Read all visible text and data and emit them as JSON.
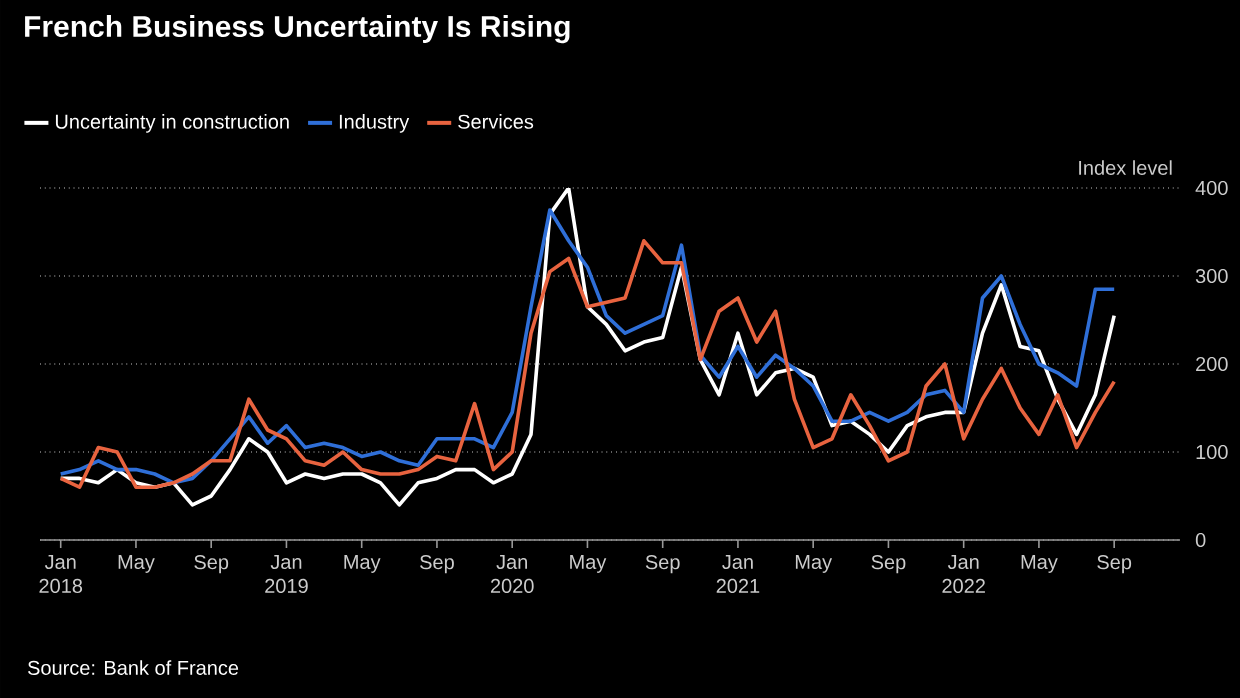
{
  "chart_data": {
    "type": "line",
    "title": "French Business Uncertainty Is Rising",
    "ylabel": "Index level",
    "categories": [
      "Jan 2018",
      null,
      null,
      null,
      "May",
      null,
      null,
      null,
      "Sep",
      null,
      null,
      null,
      "Jan 2019",
      null,
      null,
      null,
      "May",
      null,
      null,
      null,
      "Sep",
      null,
      null,
      null,
      "Jan 2020",
      null,
      null,
      null,
      "May",
      null,
      null,
      null,
      "Sep",
      null,
      null,
      null,
      "Jan 2021",
      null,
      null,
      null,
      "May",
      null,
      null,
      null,
      "Sep",
      null,
      null,
      null,
      "Jan 2022",
      null,
      null,
      null,
      "May",
      null,
      null,
      null,
      "Sep"
    ],
    "series": [
      {
        "name": "Uncertainty in construction",
        "color": "#ffffff",
        "values": [
          70,
          70,
          65,
          80,
          65,
          60,
          65,
          40,
          50,
          80,
          115,
          100,
          65,
          75,
          70,
          75,
          75,
          65,
          40,
          65,
          70,
          80,
          80,
          65,
          75,
          120,
          370,
          400,
          265,
          245,
          215,
          225,
          230,
          310,
          205,
          165,
          235,
          165,
          190,
          195,
          185,
          130,
          135,
          120,
          100,
          130,
          140,
          145,
          145,
          235,
          290,
          220,
          215,
          160,
          120,
          165,
          255
        ]
      },
      {
        "name": "Industry",
        "color": "#2f6fd8",
        "values": [
          75,
          80,
          90,
          80,
          80,
          75,
          65,
          70,
          90,
          115,
          140,
          110,
          130,
          105,
          110,
          105,
          95,
          100,
          90,
          85,
          115,
          115,
          115,
          105,
          145,
          265,
          375,
          340,
          310,
          255,
          235,
          245,
          255,
          335,
          210,
          185,
          220,
          185,
          210,
          195,
          175,
          135,
          135,
          145,
          135,
          145,
          165,
          170,
          145,
          275,
          300,
          245,
          200,
          190,
          175,
          285,
          285
        ]
      },
      {
        "name": "Services",
        "color": "#e8633f",
        "values": [
          70,
          60,
          105,
          100,
          60,
          60,
          65,
          75,
          90,
          90,
          160,
          125,
          115,
          90,
          85,
          100,
          80,
          75,
          75,
          80,
          95,
          90,
          155,
          80,
          100,
          235,
          305,
          320,
          265,
          270,
          275,
          340,
          315,
          315,
          205,
          260,
          275,
          225,
          260,
          160,
          105,
          115,
          165,
          130,
          90,
          100,
          175,
          200,
          115,
          160,
          195,
          150,
          120,
          165,
          105,
          145,
          180
        ]
      }
    ],
    "ylim": [
      0,
      400
    ],
    "yticks": [
      0,
      100,
      200,
      300,
      400
    ],
    "grid": "y",
    "legend": "top left",
    "annotations": [
      "Source: Bank of France"
    ]
  }
}
